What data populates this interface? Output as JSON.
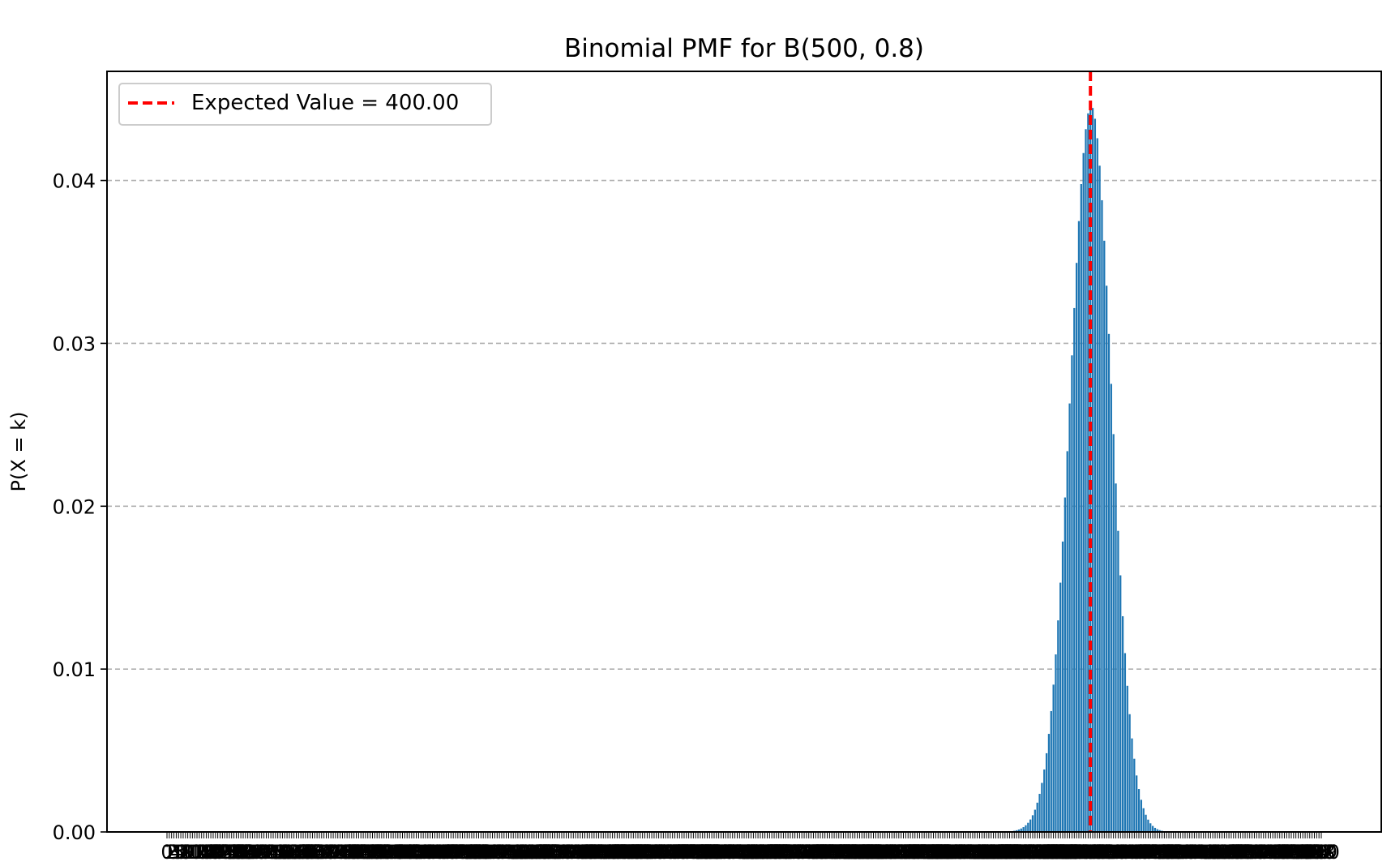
{
  "chart_data": {
    "type": "bar",
    "title": "Binomial PMF for B(500, 0.8)",
    "xlabel": "",
    "ylabel": "P(X = k)",
    "binomial": {
      "n": 500,
      "p": 0.8
    },
    "categories_range": [
      0,
      500
    ],
    "xticks": "every k from 0 to 500 (labels overlap)",
    "ylim": [
      0,
      0.0467
    ],
    "yticks": [
      "0.00",
      "0.01",
      "0.02",
      "0.03",
      "0.04"
    ],
    "ytick_values": [
      0,
      0.01,
      0.02,
      0.03,
      0.04
    ],
    "grid": {
      "axis": "y",
      "style": "dashed",
      "color": "#b0b0b0"
    },
    "bar_color": "#1f77b4",
    "expected_value": {
      "value": 400.0,
      "label": "Expected Value = 400.00",
      "color": "#ff0000",
      "style": "dashed"
    },
    "legend": {
      "position": "upper-left",
      "entries": [
        "Expected Value = 400.00"
      ]
    },
    "peak": {
      "k": 400,
      "value": 0.0446
    }
  }
}
